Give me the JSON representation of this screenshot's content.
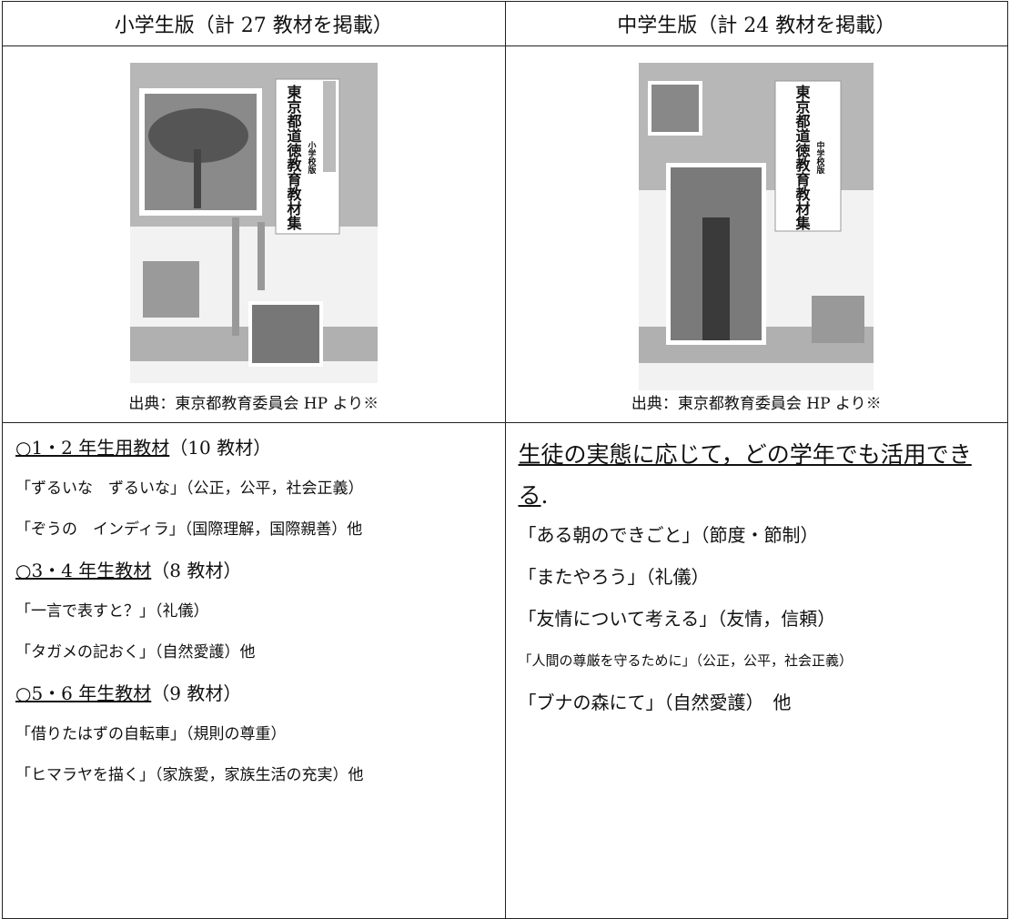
{
  "table": {
    "headers": [
      "小学生版（計 27 教材を掲載）",
      "中学生版（計 24 教材を掲載）"
    ],
    "covers": [
      {
        "school": "小学校版",
        "title": "東京都道徳教育教材集"
      },
      {
        "school": "中学校版",
        "title": "東京都道徳教育教材集"
      }
    ],
    "captions": [
      "出典：東京都教育委員会 HP より※",
      "出典：東京都教育委員会 HP より※"
    ],
    "elementary": [
      {
        "heading": "○1・2 年生用教材",
        "note": "（10 教材）"
      },
      "「ずるいな　ずるいな」（公正，公平，社会正義）",
      "「ぞうの　インディラ」（国際理解，国際親善）他",
      {
        "heading": "○3・4 年生教材",
        "note": "（8 教材）"
      },
      "「一言で表すと？」（礼儀）",
      "「タガメの記おく」（自然愛護）他",
      {
        "heading": "○5・6 年生教材",
        "note": "（9 教材）"
      },
      "「借りたはずの自転車」（規則の尊重）",
      "「ヒマラヤを描く」（家族愛，家族生活の充実）他"
    ],
    "junior": {
      "intro": {
        "underlined": "生徒の実態に応じて，どの学年でも活用できる",
        "after": "."
      },
      "lines": [
        "「ある朝のできごと」（節度・節制）",
        "「またやろう」（礼儀）",
        "「友情について考える」（友情，信頼）",
        "「人間の尊厳を守るために」（公正，公平，社会正義）",
        "「ブナの森にて」（自然愛護）　他"
      ]
    }
  }
}
